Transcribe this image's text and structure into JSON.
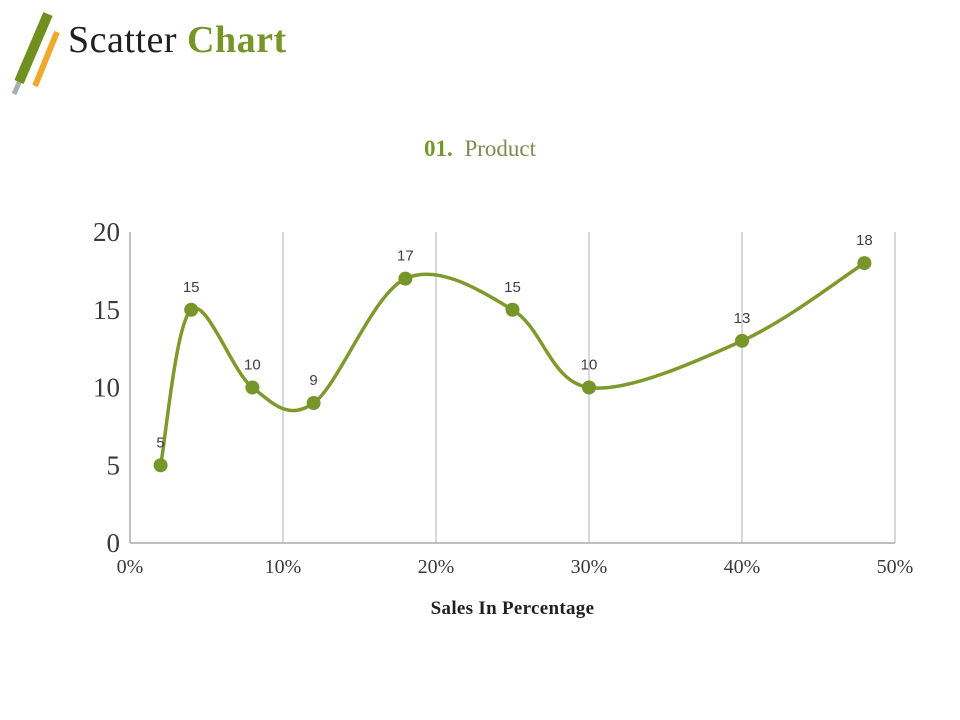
{
  "header": {
    "title_primary": "Scatter",
    "title_accent": "Chart"
  },
  "subtitle": {
    "number": "01.",
    "label": "Product"
  },
  "chart_data": {
    "type": "scatter",
    "x": [
      2,
      4,
      8,
      12,
      18,
      25,
      30,
      40,
      48
    ],
    "y": [
      5,
      15,
      10,
      9,
      17,
      15,
      10,
      13,
      18
    ],
    "point_labels": [
      "5",
      "15",
      "10",
      "9",
      "17",
      "15",
      "10",
      "13",
      "18"
    ],
    "xlabel": "Sales In Percentage",
    "ylabel": "",
    "xlim": [
      0,
      50
    ],
    "ylim": [
      0,
      20
    ],
    "x_tick_values": [
      0,
      10,
      20,
      30,
      40,
      50
    ],
    "x_tick_labels": [
      "0%",
      "10%",
      "20%",
      "30%",
      "40%",
      "50%"
    ],
    "y_tick_values": [
      0,
      5,
      10,
      15,
      20
    ],
    "y_tick_labels": [
      "0",
      "5",
      "10",
      "15",
      "20"
    ],
    "grid": "vertical-only",
    "legend": "none",
    "line_smooth": true,
    "marker_radius": 7,
    "line_width": 3.5
  },
  "colors": {
    "accent": "#76962a",
    "logo_green": "#6f8f1f",
    "logo_yellow": "#edaa2b",
    "logo_gray": "#a8adad",
    "text_dark": "#1f1f1f",
    "subtitle_gray": "#7e8a52",
    "axis_text": "#3a3a3a",
    "label_text": "#3f3f3f",
    "axis_line": "#9a9a9a",
    "grid_line": "#b0b0b0",
    "marker_fill": "#76962a",
    "line_color": "#7e9a2d"
  }
}
